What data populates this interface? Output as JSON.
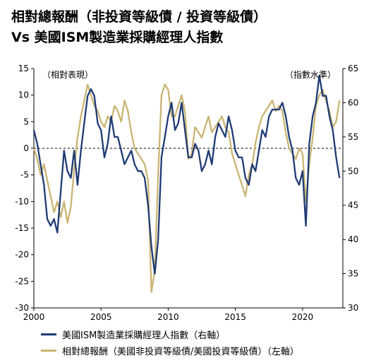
{
  "title_line1": "相對總報酬（非投資等級債 / 投資等級債）",
  "title_line2": "Vs 美國ISM製造業採購經理人指數",
  "chart_data": {
    "type": "line",
    "left_axis_note": "（相對表現）",
    "right_axis_note": "（指數水準）",
    "left_ylim": [
      -30,
      15
    ],
    "left_yticks": [
      15,
      10,
      5,
      0,
      -5,
      -10,
      -15,
      -20,
      -25,
      -30
    ],
    "right_ylim": [
      30,
      65
    ],
    "right_yticks": [
      65,
      60,
      55,
      50,
      45,
      40,
      35,
      30
    ],
    "xlim": [
      2000,
      2023
    ],
    "xticks": [
      2000,
      2005,
      2010,
      2015,
      2020
    ],
    "zero_line": "dashed",
    "grid": false,
    "colors": {
      "ism": "#1f3b73",
      "relative": "#c9b574"
    },
    "series": [
      {
        "key": "ism",
        "name": "美國ISM製造業採購經理人指數（右軸）",
        "axis": "right",
        "x": [
          2000.0,
          2000.25,
          2000.5,
          2000.75,
          2001.0,
          2001.25,
          2001.5,
          2001.75,
          2002.0,
          2002.25,
          2002.5,
          2002.75,
          2003.0,
          2003.25,
          2003.5,
          2003.75,
          2004.0,
          2004.25,
          2004.5,
          2004.75,
          2005.0,
          2005.25,
          2005.5,
          2005.75,
          2006.0,
          2006.25,
          2006.5,
          2006.75,
          2007.0,
          2007.25,
          2007.5,
          2007.75,
          2008.0,
          2008.25,
          2008.5,
          2008.75,
          2009.0,
          2009.25,
          2009.5,
          2009.75,
          2010.0,
          2010.25,
          2010.5,
          2010.75,
          2011.0,
          2011.25,
          2011.5,
          2011.75,
          2012.0,
          2012.25,
          2012.5,
          2012.75,
          2013.0,
          2013.25,
          2013.5,
          2013.75,
          2014.0,
          2014.25,
          2014.5,
          2014.75,
          2015.0,
          2015.25,
          2015.5,
          2015.75,
          2016.0,
          2016.25,
          2016.5,
          2016.75,
          2017.0,
          2017.25,
          2017.5,
          2017.75,
          2018.0,
          2018.25,
          2018.5,
          2018.75,
          2019.0,
          2019.25,
          2019.5,
          2019.75,
          2020.0,
          2020.25,
          2020.5,
          2020.75,
          2021.0,
          2021.25,
          2021.5,
          2021.75,
          2022.0,
          2022.25,
          2022.5,
          2022.75
        ],
        "values": [
          56,
          54,
          51,
          48,
          43,
          42,
          43,
          41,
          47,
          53,
          50,
          49,
          53,
          48,
          53,
          57,
          61,
          62,
          61,
          57,
          56,
          52,
          54,
          58,
          55,
          55,
          53,
          51,
          52,
          53,
          51,
          50,
          50,
          49,
          45,
          39,
          35,
          40,
          52,
          55,
          58,
          60,
          56,
          57,
          60,
          56,
          52,
          52,
          54,
          53,
          50,
          51,
          53,
          51,
          55,
          57,
          56,
          55,
          58,
          56,
          53,
          52,
          52,
          49,
          48,
          51,
          50,
          53,
          56,
          55,
          58,
          59,
          59,
          59,
          60,
          58,
          55,
          53,
          49,
          48,
          50,
          42,
          54,
          58,
          60,
          64,
          61,
          61,
          58,
          56,
          52,
          49
        ]
      },
      {
        "key": "relative",
        "name": "相對總報酬（美國非投資等級債/美國投資等級債）（左軸）",
        "axis": "left",
        "x": [
          2000.0,
          2000.25,
          2000.5,
          2000.75,
          2001.0,
          2001.25,
          2001.5,
          2001.75,
          2002.0,
          2002.25,
          2002.5,
          2002.75,
          2003.0,
          2003.25,
          2003.5,
          2003.75,
          2004.0,
          2004.25,
          2004.5,
          2004.75,
          2005.0,
          2005.25,
          2005.5,
          2005.75,
          2006.0,
          2006.25,
          2006.5,
          2006.75,
          2007.0,
          2007.25,
          2007.5,
          2007.75,
          2008.0,
          2008.25,
          2008.5,
          2008.75,
          2009.0,
          2009.25,
          2009.5,
          2009.75,
          2010.0,
          2010.25,
          2010.5,
          2010.75,
          2011.0,
          2011.25,
          2011.5,
          2011.75,
          2012.0,
          2012.25,
          2012.5,
          2012.75,
          2013.0,
          2013.25,
          2013.5,
          2013.75,
          2014.0,
          2014.25,
          2014.5,
          2014.75,
          2015.0,
          2015.25,
          2015.5,
          2015.75,
          2016.0,
          2016.25,
          2016.5,
          2016.75,
          2017.0,
          2017.25,
          2017.5,
          2017.75,
          2018.0,
          2018.25,
          2018.5,
          2018.75,
          2019.0,
          2019.25,
          2019.5,
          2019.75,
          2020.0,
          2020.25,
          2020.5,
          2020.75,
          2021.0,
          2021.25,
          2021.5,
          2021.75,
          2022.0,
          2022.25,
          2022.5,
          2022.75
        ],
        "values": [
          0,
          -2,
          -5,
          -3,
          -6,
          -9,
          -12,
          -10,
          -13,
          -10,
          -14,
          -11,
          -4,
          2,
          6,
          9,
          12,
          10,
          8,
          7,
          5,
          4,
          6,
          5,
          8,
          7,
          5,
          9,
          7,
          3,
          0,
          -1,
          -2,
          -3,
          -6,
          -27,
          -23,
          -5,
          10,
          12,
          11,
          6,
          6,
          8,
          10,
          7,
          -2,
          -1,
          4,
          3,
          2,
          4,
          6,
          3,
          4,
          5,
          6,
          4,
          3,
          -1,
          -3,
          -5,
          -7,
          -9,
          -5,
          -3,
          1,
          4,
          6,
          7,
          8,
          9,
          7,
          8,
          7,
          3,
          0,
          -1,
          -2,
          0,
          -1,
          -10,
          -3,
          2,
          8,
          10,
          11,
          9,
          7,
          4,
          5,
          9
        ]
      }
    ]
  }
}
